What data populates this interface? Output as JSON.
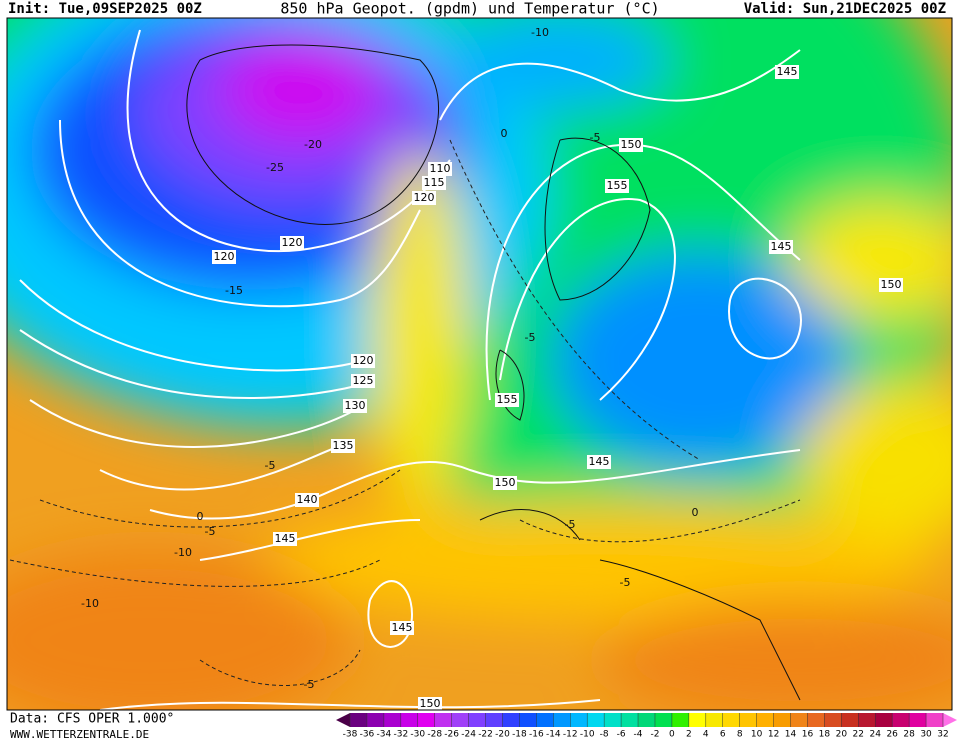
{
  "header": {
    "init": "Init: Tue,09SEP2025 00Z",
    "title": "850 hPa Geopot. (gpdm) und Temperatur (°C)",
    "valid": "Valid: Sun,21DEC2025 00Z"
  },
  "footer": {
    "data": "Data: CFS OPER 1.000°",
    "site": "WWW.WETTERZENTRALE.DE"
  },
  "geopotential_labels": [
    "145",
    "150",
    "155",
    "110",
    "115",
    "120",
    "120",
    "120",
    "145",
    "150",
    "120",
    "125",
    "130",
    "155",
    "135",
    "145",
    "150",
    "140",
    "145",
    "145",
    "150"
  ],
  "temperature_labels": [
    "-10",
    "-5",
    "-20",
    "-25",
    "-15",
    "-5",
    "0",
    "-5",
    "0",
    "-5",
    "-10",
    "-10",
    "-5",
    "-5",
    "0",
    "-5"
  ],
  "colorbar": {
    "ticks": [
      -38,
      -36,
      -34,
      -32,
      -30,
      -28,
      -26,
      -24,
      -22,
      -20,
      -18,
      -16,
      -14,
      -12,
      -10,
      -8,
      -6,
      -4,
      -2,
      0,
      2,
      4,
      6,
      8,
      10,
      12,
      14,
      16,
      18,
      20,
      22,
      24,
      26,
      28,
      30,
      32
    ],
    "colors": [
      "#4a0048",
      "#6a0080",
      "#8c00b0",
      "#aa00d0",
      "#c800e8",
      "#e000f0",
      "#c030f0",
      "#a040f8",
      "#8040ff",
      "#6040ff",
      "#3040ff",
      "#1050ff",
      "#0070ff",
      "#0098ff",
      "#00b8ff",
      "#00d8f0",
      "#00e0c8",
      "#00e0a0",
      "#00d878",
      "#00e050",
      "#30f000",
      "#ffff00",
      "#f8e800",
      "#ffd800",
      "#ffc400",
      "#ffb000",
      "#f89c00",
      "#f08418",
      "#e86820",
      "#d84c20",
      "#c83020",
      "#b81830",
      "#a80040",
      "#c80070",
      "#e000a0",
      "#f040c8",
      "#ff70e8"
    ]
  }
}
